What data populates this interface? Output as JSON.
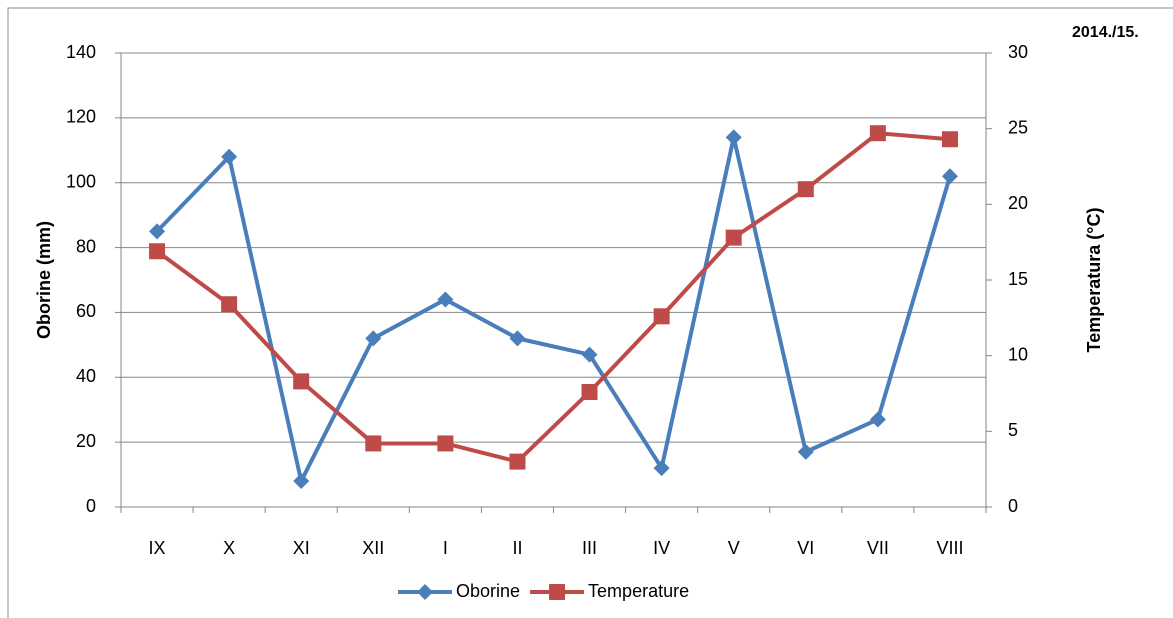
{
  "chart_data": {
    "type": "line",
    "title": "2014./15.",
    "categories": [
      "IX",
      "X",
      "XI",
      "XII",
      "I",
      "II",
      "III",
      "IV",
      "V",
      "VI",
      "VII",
      "VIII"
    ],
    "series": [
      {
        "name": "Oborine",
        "color": "#4a7ebb",
        "marker": "diamond",
        "axis": "y",
        "values": [
          85,
          108,
          8,
          52,
          64,
          52,
          47,
          12,
          114,
          17,
          27,
          102
        ]
      },
      {
        "name": "Temperature",
        "color": "#be4b48",
        "marker": "square",
        "axis": "y2",
        "values": [
          16.9,
          13.4,
          8.3,
          4.2,
          4.2,
          3.0,
          7.6,
          12.6,
          17.8,
          21.0,
          24.7,
          24.3
        ]
      }
    ],
    "y_label": "Oborine (mm)",
    "y2_label": "Temperatura (°C)",
    "ylim": [
      0,
      140
    ],
    "yticks": [
      0,
      20,
      40,
      60,
      80,
      100,
      120,
      140
    ],
    "y2lim": [
      0,
      30
    ],
    "y2ticks": [
      0,
      5,
      10,
      15,
      20,
      25,
      30
    ],
    "grid": true,
    "legend": "bottom"
  }
}
